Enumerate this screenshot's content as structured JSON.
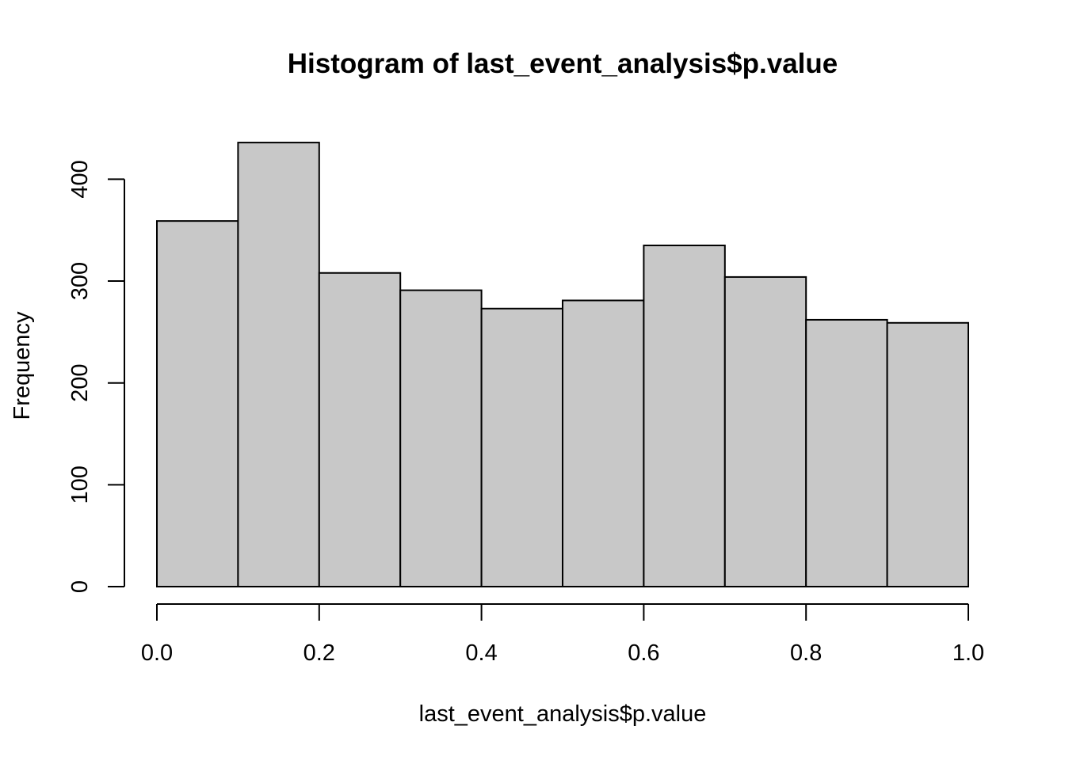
{
  "chart_data": {
    "type": "bar",
    "subtype": "histogram",
    "title": "Histogram of last_event_analysis$p.value",
    "xlabel": "last_event_analysis$p.value",
    "ylabel": "Frequency",
    "bin_edges": [
      0.0,
      0.1,
      0.2,
      0.3,
      0.4,
      0.5,
      0.6,
      0.7,
      0.8,
      0.9,
      1.0
    ],
    "values": [
      359,
      436,
      308,
      291,
      273,
      281,
      335,
      304,
      262,
      259
    ],
    "xlim": [
      0.0,
      1.0
    ],
    "ylim": [
      0,
      436
    ],
    "x_ticks": [
      "0.0",
      "0.2",
      "0.4",
      "0.6",
      "0.8",
      "1.0"
    ],
    "y_ticks": [
      "0",
      "100",
      "200",
      "300",
      "400"
    ],
    "bar_color": "#c8c8c8",
    "grid": false,
    "legend": "none"
  }
}
